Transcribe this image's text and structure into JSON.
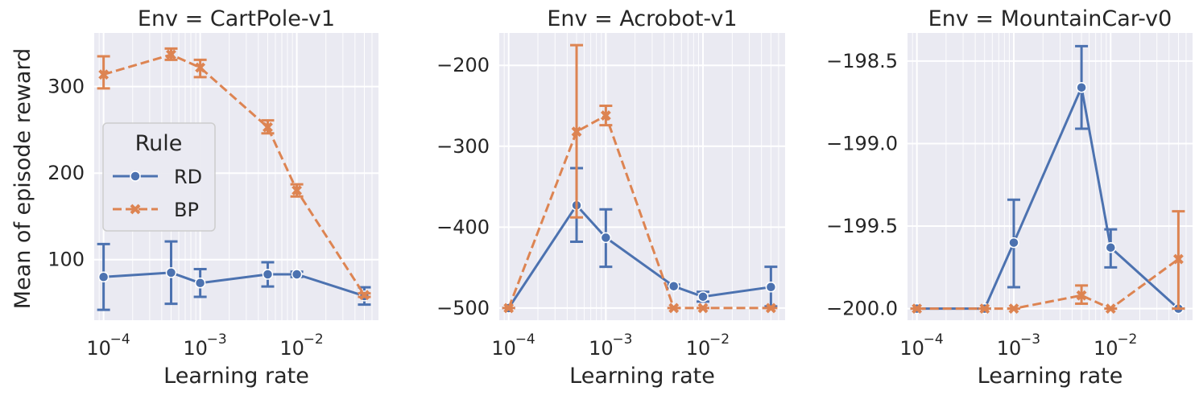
{
  "figure": {
    "ylabel": "Mean of episode reward",
    "xlabel": "Learning rate",
    "legend": {
      "title": "Rule",
      "placement": "center-left of first panel"
    },
    "colors": {
      "RD": "#4c72b0",
      "BP": "#dd8452",
      "panel_bg": "#eaeaf2",
      "grid": "#ffffff"
    }
  },
  "chart_data": [
    {
      "type": "line",
      "title": "Env = CartPole-v1",
      "xscale": "log",
      "xlim": [
        8e-05,
        0.07
      ],
      "ylim": [
        30,
        362
      ],
      "xticks": [
        0.0001,
        0.001,
        0.01
      ],
      "xtick_labels": [
        {
          "base": "10",
          "exp": "−4"
        },
        {
          "base": "10",
          "exp": "−3"
        },
        {
          "base": "10",
          "exp": "−2"
        }
      ],
      "yticks": [
        100,
        200,
        300
      ],
      "ytick_labels": [
        "100",
        "200",
        "300"
      ],
      "grid": true,
      "series": [
        {
          "name": "RD",
          "marker": "o",
          "dash": "solid",
          "x": [
            0.0001,
            0.0005,
            0.001,
            0.005,
            0.01,
            0.05
          ],
          "y": [
            80,
            85,
            73,
            83,
            83,
            58
          ],
          "err_low": [
            42,
            49,
            57,
            69,
            80,
            48
          ],
          "err_high": [
            118,
            121,
            89,
            97,
            86,
            68
          ]
        },
        {
          "name": "BP",
          "marker": "x",
          "dash": "dashed",
          "x": [
            0.0001,
            0.0005,
            0.001,
            0.005,
            0.01,
            0.05
          ],
          "y": [
            314,
            337,
            322,
            253,
            180,
            59
          ],
          "err_low": [
            298,
            331,
            311,
            246,
            173,
            57
          ],
          "err_high": [
            335,
            344,
            331,
            261,
            187,
            61
          ]
        }
      ]
    },
    {
      "type": "line",
      "title": "Env = Acrobot-v1",
      "xscale": "log",
      "xlim": [
        8e-05,
        0.07
      ],
      "ylim": [
        -515,
        -160
      ],
      "xticks": [
        0.0001,
        0.001,
        0.01
      ],
      "xtick_labels": [
        {
          "base": "10",
          "exp": "−4"
        },
        {
          "base": "10",
          "exp": "−3"
        },
        {
          "base": "10",
          "exp": "−2"
        }
      ],
      "yticks": [
        -500,
        -400,
        -300,
        -200
      ],
      "ytick_labels": [
        "−500",
        "−400",
        "−300",
        "−200"
      ],
      "grid": true,
      "series": [
        {
          "name": "RD",
          "marker": "o",
          "dash": "solid",
          "x": [
            0.0001,
            0.0005,
            0.001,
            0.005,
            0.01,
            0.05
          ],
          "y": [
            -500,
            -373,
            -413,
            -473,
            -486,
            -474
          ],
          "err_low": [
            -500,
            -418,
            -449,
            -475,
            -492,
            -498
          ],
          "err_high": [
            -500,
            -327,
            -378,
            -471,
            -480,
            -449
          ]
        },
        {
          "name": "BP",
          "marker": "x",
          "dash": "dashed",
          "x": [
            0.0001,
            0.0005,
            0.001,
            0.005,
            0.01,
            0.05
          ],
          "y": [
            -500,
            -282,
            -262,
            -500,
            -500,
            -500
          ],
          "err_low": [
            -500,
            -388,
            -274,
            -500,
            -500,
            -500
          ],
          "err_high": [
            -500,
            -175,
            -250,
            -500,
            -500,
            -500
          ]
        }
      ]
    },
    {
      "type": "line",
      "title": "Env = MountainCar-v0",
      "xscale": "log",
      "xlim": [
        8e-05,
        0.07
      ],
      "ylim": [
        -200.07,
        -198.33
      ],
      "xticks": [
        0.0001,
        0.001,
        0.01
      ],
      "xtick_labels": [
        {
          "base": "10",
          "exp": "−4"
        },
        {
          "base": "10",
          "exp": "−3"
        },
        {
          "base": "10",
          "exp": "−2"
        }
      ],
      "yticks": [
        -200.0,
        -199.5,
        -199.0,
        -198.5
      ],
      "ytick_labels": [
        "−200.0",
        "−199.5",
        "−199.0",
        "−198.5"
      ],
      "grid": true,
      "series": [
        {
          "name": "RD",
          "marker": "o",
          "dash": "solid",
          "x": [
            0.0001,
            0.0005,
            0.001,
            0.005,
            0.01,
            0.05
          ],
          "y": [
            -200.0,
            -200.0,
            -199.6,
            -198.66,
            -199.63,
            -200.0
          ],
          "err_low": [
            -200.0,
            -200.0,
            -199.87,
            -198.91,
            -199.75,
            -200.0
          ],
          "err_high": [
            -200.0,
            -200.0,
            -199.34,
            -198.41,
            -199.52,
            -200.0
          ]
        },
        {
          "name": "BP",
          "marker": "x",
          "dash": "dashed",
          "x": [
            0.0001,
            0.0005,
            0.001,
            0.005,
            0.01,
            0.05
          ],
          "y": [
            -200.0,
            -200.0,
            -200.0,
            -199.92,
            -200.0,
            -199.7
          ],
          "err_low": [
            -200.0,
            -200.0,
            -200.0,
            -199.97,
            -200.0,
            -200.0
          ],
          "err_high": [
            -200.0,
            -200.0,
            -200.0,
            -199.86,
            -200.0,
            -199.41
          ]
        }
      ]
    }
  ]
}
